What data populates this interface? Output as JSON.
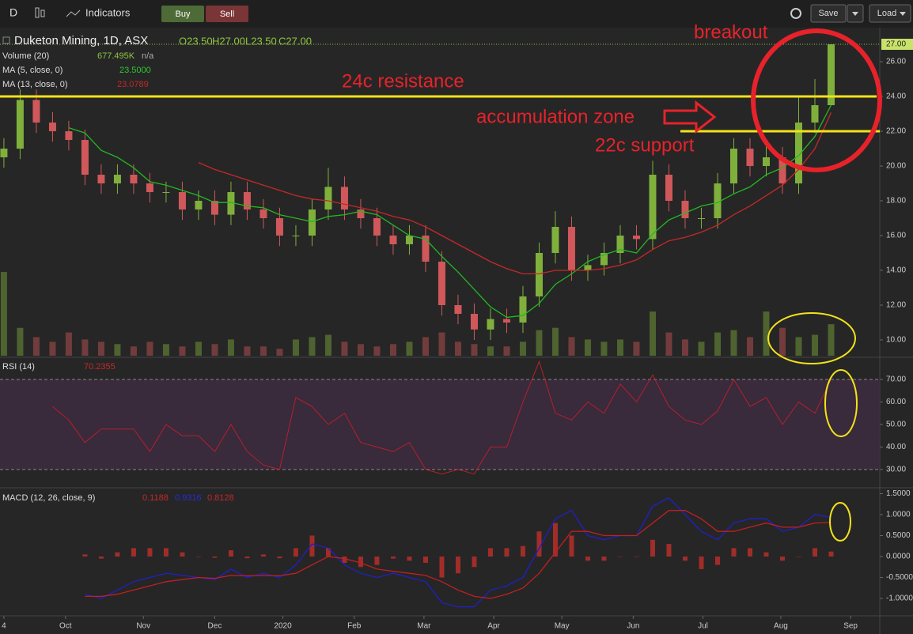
{
  "toolbar": {
    "interval": "D",
    "indicators": "Indicators",
    "buy": "Buy",
    "sell": "Sell",
    "save": "Save",
    "load": "Load"
  },
  "chart_data": [
    {
      "type": "candlestick",
      "title": "Duketon Mining, 1D, ASX",
      "ohlc_labels": [
        "O23.50",
        "H27.00",
        "L23.50",
        "C27.00"
      ],
      "x": [
        0,
        1,
        2,
        3,
        4,
        5,
        6,
        7,
        8,
        9,
        10,
        11,
        12,
        13,
        14,
        15,
        16,
        17,
        18,
        19,
        20,
        21,
        22,
        23,
        24,
        25,
        26,
        27,
        28,
        29,
        30,
        31,
        32,
        33,
        34,
        35,
        36,
        37,
        38,
        39,
        40,
        41,
        42,
        43,
        44,
        45,
        46,
        47,
        48,
        49,
        50,
        51
      ],
      "open": [
        20.5,
        21.0,
        23.8,
        22.5,
        22.0,
        21.5,
        19.5,
        19.0,
        19.5,
        19.0,
        18.5,
        18.5,
        17.5,
        18.0,
        17.2,
        18.5,
        17.5,
        17.0,
        16.0,
        16.0,
        17.5,
        18.8,
        17.5,
        17.0,
        16.0,
        15.5,
        16.0,
        14.5,
        12.0,
        11.5,
        10.6,
        11.2,
        11.0,
        12.5,
        15.0,
        16.5,
        14.0,
        14.3,
        15.0,
        16.0,
        15.8,
        19.5,
        18.0,
        17.0,
        17.0,
        19.0,
        21.0,
        20.0,
        20.5,
        19.0,
        22.5,
        23.5
      ],
      "high": [
        21.6,
        24.4,
        24.4,
        23.1,
        22.6,
        22.1,
        20.1,
        20.1,
        20.1,
        19.6,
        19.1,
        19.1,
        18.6,
        18.6,
        19.1,
        19.1,
        18.1,
        17.6,
        16.6,
        18.1,
        19.9,
        19.4,
        18.1,
        17.6,
        16.6,
        16.6,
        16.6,
        15.1,
        12.6,
        12.1,
        11.8,
        11.8,
        13.1,
        15.6,
        17.4,
        17.1,
        14.9,
        15.6,
        16.6,
        16.6,
        20.3,
        20.1,
        18.6,
        17.6,
        19.6,
        21.6,
        21.6,
        21.1,
        21.1,
        24.0,
        25.0,
        27.0
      ],
      "low": [
        19.9,
        20.4,
        21.9,
        21.4,
        20.9,
        18.9,
        18.4,
        18.4,
        18.4,
        17.9,
        17.9,
        16.9,
        16.9,
        16.6,
        16.6,
        16.9,
        16.4,
        15.4,
        15.4,
        15.4,
        16.9,
        16.9,
        16.4,
        15.4,
        14.9,
        14.9,
        13.9,
        11.4,
        10.9,
        10.0,
        10.0,
        10.4,
        10.4,
        11.9,
        14.4,
        13.4,
        13.4,
        13.7,
        14.4,
        15.2,
        15.2,
        17.4,
        16.4,
        16.4,
        16.4,
        18.4,
        19.4,
        19.4,
        18.4,
        18.4,
        21.9,
        23.5
      ],
      "close": [
        21.0,
        23.8,
        22.5,
        22.0,
        21.5,
        19.5,
        19.0,
        19.5,
        19.0,
        18.5,
        18.5,
        17.5,
        18.0,
        17.2,
        18.5,
        17.5,
        17.0,
        16.0,
        16.0,
        17.5,
        18.8,
        17.5,
        17.0,
        16.0,
        15.5,
        16.0,
        14.5,
        12.0,
        11.5,
        10.6,
        11.2,
        11.0,
        12.5,
        15.0,
        16.5,
        14.0,
        14.3,
        15.0,
        16.0,
        15.8,
        19.5,
        18.0,
        17.0,
        17.0,
        19.0,
        21.0,
        20.0,
        20.5,
        19.0,
        22.5,
        23.5,
        27.0
      ],
      "up_color": "#80b03c",
      "down_color": "#d0585a",
      "series": [
        {
          "name": "MA (5, close, 0)",
          "color": "#22b822",
          "last_label": "23.5000",
          "values": [
            null,
            null,
            null,
            null,
            22.2,
            21.9,
            20.9,
            20.5,
            19.9,
            19.1,
            18.9,
            18.6,
            18.3,
            17.9,
            17.9,
            17.7,
            17.6,
            17.2,
            17.0,
            16.8,
            17.1,
            17.2,
            17.4,
            17.2,
            16.6,
            16.0,
            15.8,
            14.8,
            13.9,
            12.9,
            11.9,
            11.3,
            11.4,
            12.1,
            13.2,
            13.8,
            14.5,
            14.9,
            15.2,
            15.0,
            16.1,
            16.9,
            17.3,
            17.7,
            17.9,
            18.4,
            18.8,
            19.5,
            19.9,
            20.6,
            21.7,
            23.5
          ]
        },
        {
          "name": "MA (13, close, 0)",
          "color": "#c62828",
          "last_label": "23.0789",
          "values": [
            null,
            null,
            null,
            null,
            null,
            null,
            null,
            null,
            null,
            null,
            null,
            null,
            20.2,
            19.8,
            19.5,
            19.2,
            18.9,
            18.6,
            18.3,
            18.1,
            18.0,
            17.8,
            17.6,
            17.4,
            17.1,
            16.9,
            16.5,
            16.0,
            15.5,
            15.0,
            14.5,
            14.1,
            13.8,
            13.8,
            14.0,
            14.0,
            14.0,
            14.1,
            14.3,
            14.6,
            15.2,
            15.7,
            15.9,
            16.2,
            16.6,
            17.2,
            17.7,
            18.3,
            18.9,
            19.8,
            21.0,
            23.0789
          ]
        }
      ],
      "volume": {
        "name": "Volume (20)",
        "last_label": "677.495K",
        "extra": "n/a",
        "ylim": [
          0,
          7000
        ],
        "values": [
          1800,
          600,
          400,
          300,
          500,
          350,
          300,
          250,
          200,
          300,
          250,
          200,
          300,
          250,
          350,
          200,
          200,
          150,
          350,
          400,
          450,
          300,
          250,
          200,
          250,
          300,
          400,
          500,
          300,
          250,
          200,
          200,
          300,
          550,
          600,
          400,
          350,
          300,
          350,
          300,
          950,
          500,
          350,
          300,
          500,
          550,
          400,
          950,
          600,
          400,
          450,
          677.495
        ]
      },
      "xlim": [
        -0.24,
        54.0
      ],
      "ylim": [
        9.09,
        27.82
      ],
      "yticks": [
        {
          "value": 10,
          "label": "10.00"
        },
        {
          "value": 12,
          "label": "12.00"
        },
        {
          "value": 14,
          "label": "14.00"
        },
        {
          "value": 16,
          "label": "16.00"
        },
        {
          "value": 18,
          "label": "18.00"
        },
        {
          "value": 20,
          "label": "20.00"
        },
        {
          "value": 22,
          "label": "22.00"
        },
        {
          "value": 24,
          "label": "24.00"
        },
        {
          "value": 26,
          "label": "26.00"
        }
      ],
      "last_price": {
        "value": 27,
        "label": "27.00"
      },
      "annotations": [
        {
          "text": "breakout"
        },
        {
          "text": "24c resistance",
          "level": 24
        },
        {
          "text": "accumulation zone"
        },
        {
          "text": "22c support",
          "level": 22
        }
      ]
    },
    {
      "type": "rsi",
      "name": "RSI (14)",
      "color": "#b8202a",
      "x": [
        0,
        1,
        2,
        3,
        4,
        5,
        6,
        7,
        8,
        9,
        10,
        11,
        12,
        13,
        14,
        15,
        16,
        17,
        18,
        19,
        20,
        21,
        22,
        23,
        24,
        25,
        26,
        27,
        28,
        29,
        30,
        31,
        32,
        33,
        34,
        35,
        36,
        37,
        38,
        39,
        40,
        41,
        42,
        43,
        44,
        45,
        46,
        47,
        48,
        49,
        50,
        51
      ],
      "values": [
        null,
        null,
        null,
        58,
        52,
        42,
        48,
        48,
        48,
        38,
        50,
        45,
        45,
        38,
        50,
        38,
        32,
        30,
        62,
        58,
        50,
        55,
        42,
        40,
        38,
        42,
        30,
        28,
        30,
        28,
        40,
        40,
        60,
        78,
        55,
        52,
        60,
        55,
        68,
        60,
        72,
        58,
        52,
        50,
        56,
        70,
        58,
        62,
        50,
        60,
        55,
        70.2355
      ],
      "band": {
        "from": 30,
        "to": 70
      },
      "xlim": [
        -0.24,
        54.0
      ],
      "ylim": [
        22.6,
        78.8
      ],
      "yticks": [
        {
          "value": 30,
          "label": "30.00"
        },
        {
          "value": 40,
          "label": "40.00"
        },
        {
          "value": 50,
          "label": "50.00"
        },
        {
          "value": 60,
          "label": "60.00"
        },
        {
          "value": 70,
          "label": "70.00"
        }
      ]
    },
    {
      "type": "macd",
      "name": "MACD (12, 26, close, 9)",
      "x": [
        0,
        1,
        2,
        3,
        4,
        5,
        6,
        7,
        8,
        9,
        10,
        11,
        12,
        13,
        14,
        15,
        16,
        17,
        18,
        19,
        20,
        21,
        22,
        23,
        24,
        25,
        26,
        27,
        28,
        29,
        30,
        31,
        32,
        33,
        34,
        35,
        36,
        37,
        38,
        39,
        40,
        41,
        42,
        43,
        44,
        45,
        46,
        47,
        48,
        49,
        50,
        51
      ],
      "histogram": [
        null,
        null,
        null,
        null,
        null,
        0.05,
        -0.05,
        0.1,
        0.2,
        0.2,
        0.2,
        0.1,
        0,
        -0.03,
        0.15,
        -0.04,
        0.05,
        -0.04,
        0.2,
        0.5,
        0.2,
        -0.15,
        -0.25,
        -0.2,
        -0.05,
        -0.1,
        -0.15,
        -0.5,
        -0.4,
        -0.25,
        0.2,
        0.2,
        0.25,
        0.6,
        0.8,
        0.5,
        -0.1,
        -0.1,
        0,
        0,
        0.4,
        0.3,
        -0.1,
        -0.3,
        -0.2,
        0.2,
        0.2,
        0.1,
        -0.1,
        0,
        0.2,
        0.1188
      ],
      "macd": [
        null,
        null,
        null,
        null,
        null,
        -0.9,
        -1.0,
        -0.8,
        -0.6,
        -0.5,
        -0.4,
        -0.45,
        -0.5,
        -0.55,
        -0.3,
        -0.5,
        -0.4,
        -0.5,
        -0.2,
        0.3,
        0.2,
        -0.2,
        -0.4,
        -0.5,
        -0.4,
        -0.5,
        -0.6,
        -1.1,
        -1.2,
        -1.2,
        -0.8,
        -0.7,
        -0.5,
        0.2,
        0.9,
        1.1,
        0.5,
        0.4,
        0.5,
        0.5,
        1.2,
        1.4,
        1.0,
        0.6,
        0.4,
        0.8,
        0.9,
        0.9,
        0.6,
        0.7,
        1.0,
        0.9316
      ],
      "signal": [
        null,
        null,
        null,
        null,
        null,
        -0.95,
        -0.95,
        -0.9,
        -0.8,
        -0.7,
        -0.6,
        -0.55,
        -0.5,
        -0.52,
        -0.45,
        -0.46,
        -0.45,
        -0.46,
        -0.4,
        -0.2,
        0.0,
        -0.05,
        -0.15,
        -0.3,
        -0.35,
        -0.4,
        -0.45,
        -0.6,
        -0.8,
        -0.95,
        -1.0,
        -0.9,
        -0.75,
        -0.4,
        0.1,
        0.6,
        0.6,
        0.5,
        0.5,
        0.5,
        0.8,
        1.1,
        1.1,
        0.9,
        0.6,
        0.6,
        0.7,
        0.8,
        0.7,
        0.7,
        0.8,
        0.8128
      ],
      "colors": {
        "histogram": "#c0302a",
        "macd": "#2020c8",
        "signal": "#c02020"
      },
      "xlim": [
        -0.24,
        54.0
      ],
      "ylim": [
        -1.396,
        1.585
      ],
      "yticks": [
        {
          "value": 1.5,
          "label": "1.5000"
        },
        {
          "value": 1,
          "label": "1.0000"
        },
        {
          "value": 0.5,
          "label": "0.5000"
        },
        {
          "value": 0,
          "label": "0.0000"
        },
        {
          "value": -0.5,
          "label": "-0.5000"
        },
        {
          "value": -1,
          "label": "-1.0000"
        }
      ],
      "xticks": [
        {
          "value": 0,
          "label": "4"
        },
        {
          "value": 3.8,
          "label": "Oct"
        },
        {
          "value": 8.6,
          "label": "Nov"
        },
        {
          "value": 13.0,
          "label": "Dec"
        },
        {
          "value": 17.2,
          "label": "2020"
        },
        {
          "value": 21.6,
          "label": "Feb"
        },
        {
          "value": 25.9,
          "label": "Mar"
        },
        {
          "value": 30.2,
          "label": "Apr"
        },
        {
          "value": 34.4,
          "label": "May"
        },
        {
          "value": 38.8,
          "label": "Jun"
        },
        {
          "value": 43.1,
          "label": "Jul"
        },
        {
          "value": 47.9,
          "label": "Aug"
        },
        {
          "value": 52.2,
          "label": "Sep"
        }
      ]
    }
  ]
}
